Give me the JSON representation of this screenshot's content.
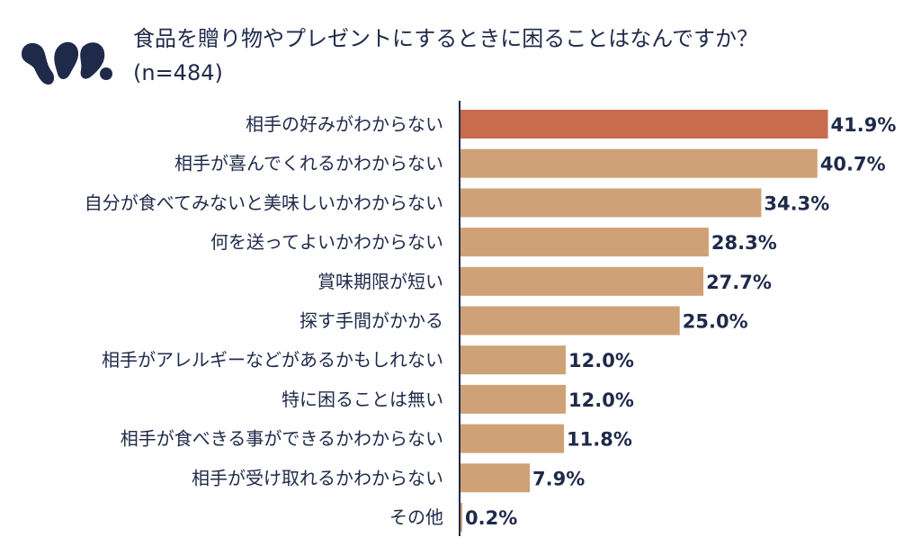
{
  "header": {
    "title": "食品を贈り物やプレゼントにするときに困ることはなんですか？",
    "subtitle": "(n=484)"
  },
  "colors": {
    "highlight": "#c96b4d",
    "bar": "#cfa176",
    "text": "#1f2a4a",
    "logo": "#1f2a4a",
    "axis": "#1f2a4a"
  },
  "chart_data": {
    "type": "bar",
    "orientation": "horizontal",
    "title": "食品を贈り物やプレゼントにするときに困ることはなんですか？",
    "subtitle": "(n=484)",
    "unit": "%",
    "xlim": [
      0,
      45
    ],
    "highlight_index": 0,
    "categories": [
      "相手の好みがわからない",
      "相手が喜んでくれるかわからない",
      "自分が食べてみないと美味しいかわからない",
      "何を送ってよいかわからない",
      "賞味期限が短い",
      "探す手間がかかる",
      "相手がアレルギーなどがあるかもしれない",
      "特に困ることは無い",
      "相手が食べきる事ができるかわからない",
      "相手が受け取れるかわからない",
      "その他"
    ],
    "values": [
      41.9,
      40.7,
      34.3,
      28.3,
      27.7,
      25.0,
      12.0,
      12.0,
      11.8,
      7.9,
      0.2
    ],
    "value_labels": [
      "41.9%",
      "40.7%",
      "34.3%",
      "28.3%",
      "27.7%",
      "25.0%",
      "12.0%",
      "12.0%",
      "11.8%",
      "7.9%",
      "0.2%"
    ]
  }
}
